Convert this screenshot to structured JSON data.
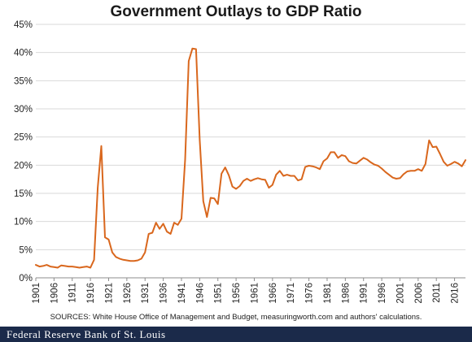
{
  "chart_data": {
    "type": "line",
    "title": "Government Outlays to GDP Ratio",
    "xlabel": "",
    "ylabel": "",
    "ylim": [
      0,
      45
    ],
    "y_ticks": [
      0,
      5,
      10,
      15,
      20,
      25,
      30,
      35,
      40,
      45
    ],
    "y_tick_format": "percent",
    "x_tick_labels": [
      "1901",
      "1906",
      "1911",
      "1916",
      "1921",
      "1926",
      "1931",
      "1936",
      "1941",
      "1946",
      "1951",
      "1956",
      "1961",
      "1966",
      "1971",
      "1976",
      "1981",
      "1986",
      "1991",
      "1996",
      "2001",
      "2006",
      "2011",
      "2016"
    ],
    "grid": "horizontal",
    "legend": "none",
    "line_color": "#d9671d",
    "series": [
      {
        "x": [
          1901,
          1902,
          1903,
          1904,
          1905,
          1906,
          1907,
          1908,
          1909,
          1910,
          1911,
          1912,
          1913,
          1914,
          1915,
          1916,
          1917,
          1918,
          1919,
          1920,
          1921,
          1922,
          1923,
          1924,
          1925,
          1926,
          1927,
          1928,
          1929,
          1930,
          1931,
          1932,
          1933,
          1934,
          1935,
          1936,
          1937,
          1938,
          1939,
          1940,
          1941,
          1942,
          1943,
          1944,
          1945,
          1946,
          1947,
          1948,
          1949,
          1950,
          1951,
          1952,
          1953,
          1954,
          1955,
          1956,
          1957,
          1958,
          1959,
          1960,
          1961,
          1962,
          1963,
          1964,
          1965,
          1966,
          1967,
          1968,
          1969,
          1970,
          1971,
          1972,
          1973,
          1974,
          1975,
          1976,
          1977,
          1978,
          1979,
          1980,
          1981,
          1982,
          1983,
          1984,
          1985,
          1986,
          1987,
          1988,
          1989,
          1990,
          1991,
          1992,
          1993,
          1994,
          1995,
          1996,
          1997,
          1998,
          1999,
          2000,
          2001,
          2002,
          2003,
          2004,
          2005,
          2006,
          2007,
          2008,
          2009,
          2010,
          2011,
          2012,
          2013,
          2014,
          2015,
          2016,
          2017,
          2018,
          2019
        ],
        "values": [
          2.3,
          2.0,
          2.1,
          2.3,
          2.0,
          1.9,
          1.8,
          2.2,
          2.1,
          2.0,
          2.0,
          1.9,
          1.8,
          1.9,
          2.0,
          1.8,
          3.2,
          16.0,
          23.4,
          7.2,
          6.8,
          4.5,
          3.7,
          3.4,
          3.2,
          3.1,
          3.0,
          3.0,
          3.1,
          3.4,
          4.5,
          7.8,
          8.0,
          9.8,
          8.7,
          9.6,
          8.2,
          7.8,
          9.8,
          9.4,
          10.5,
          21.0,
          38.5,
          40.7,
          40.6,
          24.5,
          13.6,
          10.8,
          14.2,
          14.1,
          13.1,
          18.5,
          19.6,
          18.2,
          16.2,
          15.8,
          16.3,
          17.2,
          17.6,
          17.2,
          17.5,
          17.7,
          17.5,
          17.4,
          16.0,
          16.5,
          18.3,
          19.0,
          18.1,
          18.3,
          18.1,
          18.1,
          17.3,
          17.5,
          19.7,
          19.9,
          19.8,
          19.6,
          19.3,
          20.7,
          21.2,
          22.3,
          22.3,
          21.3,
          21.8,
          21.6,
          20.7,
          20.4,
          20.3,
          20.8,
          21.3,
          21.0,
          20.5,
          20.1,
          19.9,
          19.4,
          18.8,
          18.3,
          17.8,
          17.6,
          17.7,
          18.4,
          18.9,
          19.0,
          19.0,
          19.3,
          19.0,
          20.2,
          24.4,
          23.2,
          23.3,
          22.0,
          20.6,
          19.9,
          20.2,
          20.6,
          20.3,
          19.8,
          20.9
        ]
      }
    ]
  },
  "source_note": "SOURCES: White House Office of Management and Budget, measuringworth.com  and authors' calculations.",
  "footer": {
    "label": "Federal Reserve Bank of St. Louis",
    "background": "#1b2a4a",
    "text_color": "#ffffff"
  }
}
